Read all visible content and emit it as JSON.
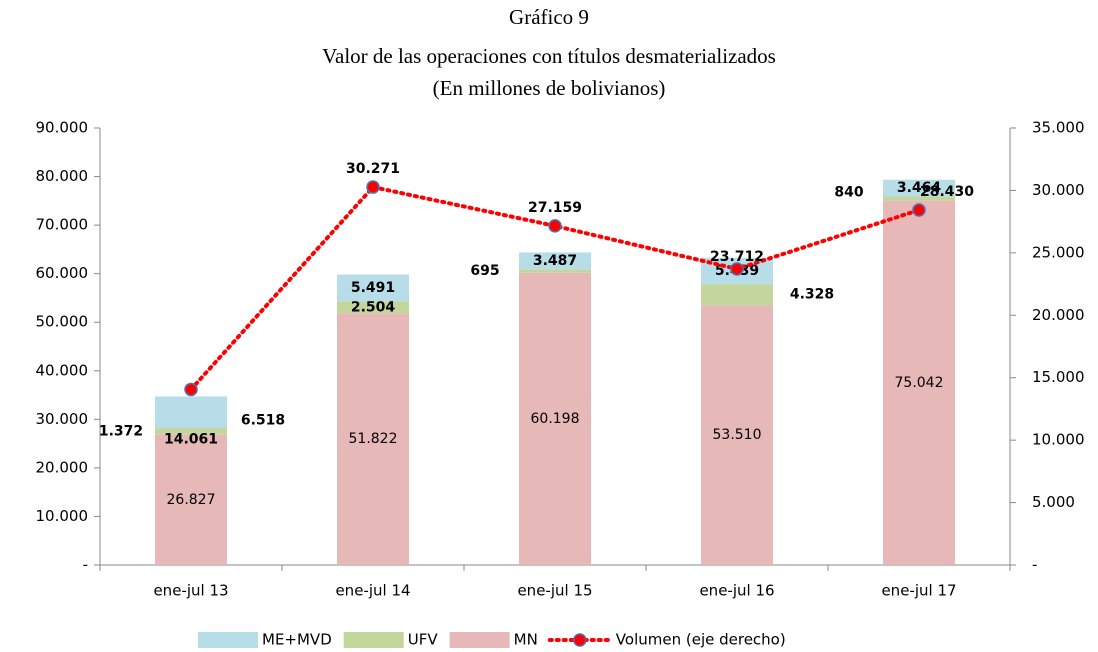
{
  "chart_data": {
    "type": "bar",
    "title": [
      "Gráfico 9",
      "Valor de las operaciones con títulos desmaterializados",
      "(En millones de bolivianos)"
    ],
    "categories": [
      "ene-jul 13",
      "ene-jul 14",
      "ene-jul 15",
      "ene-jul 16",
      "ene-jul 17"
    ],
    "series": [
      {
        "name": "ME+MVD",
        "type": "bar",
        "color": "#b7dee8",
        "label_color": "#31697a",
        "values": [
          6518,
          5491,
          3487,
          5439,
          3464
        ],
        "value_labels": [
          "6.518",
          "5.491",
          "3.487",
          "5.439",
          "3.464"
        ]
      },
      {
        "name": "UFV",
        "type": "bar",
        "color": "#c3d69b",
        "label_color": "#77933c",
        "values": [
          1372,
          2504,
          695,
          4328,
          840
        ],
        "value_labels": [
          "1.372",
          "2.504",
          "695",
          "4.328",
          "840"
        ]
      },
      {
        "name": "MN",
        "type": "bar",
        "color": "#e6b8b7",
        "label_color": "#000000",
        "values": [
          26827,
          51822,
          60198,
          53510,
          75042
        ],
        "value_labels": [
          "26.827",
          "51.822",
          "60.198",
          "53.510",
          "75.042"
        ]
      },
      {
        "name": "Volumen (eje derecho)",
        "type": "line",
        "axis": "y2",
        "color": "#ff0000",
        "label_color": "#ff0000",
        "values": [
          14061,
          30271,
          27159,
          23712,
          28430
        ],
        "value_labels": [
          "14.061",
          "30.271",
          "27.159",
          "23.712",
          "28.430"
        ]
      }
    ],
    "stacked": true,
    "ylim": [
      0,
      90000
    ],
    "yticks": [
      {
        "value": 0,
        "label": "-"
      },
      {
        "value": 10000,
        "label": "10.000"
      },
      {
        "value": 20000,
        "label": "20.000"
      },
      {
        "value": 30000,
        "label": "30.000"
      },
      {
        "value": 40000,
        "label": "40.000"
      },
      {
        "value": 50000,
        "label": "50.000"
      },
      {
        "value": 60000,
        "label": "60.000"
      },
      {
        "value": 70000,
        "label": "70.000"
      },
      {
        "value": 80000,
        "label": "80.000"
      },
      {
        "value": 90000,
        "label": "90.000"
      }
    ],
    "y2lim": [
      0,
      35000
    ],
    "y2ticks": [
      {
        "value": 0,
        "label": "-"
      },
      {
        "value": 5000,
        "label": "5.000"
      },
      {
        "value": 10000,
        "label": "10.000"
      },
      {
        "value": 15000,
        "label": "15.000"
      },
      {
        "value": 20000,
        "label": "20.000"
      },
      {
        "value": 25000,
        "label": "25.000"
      },
      {
        "value": 30000,
        "label": "30.000"
      },
      {
        "value": 35000,
        "label": "35.000"
      }
    ],
    "grid": false,
    "legend": "bottom"
  }
}
